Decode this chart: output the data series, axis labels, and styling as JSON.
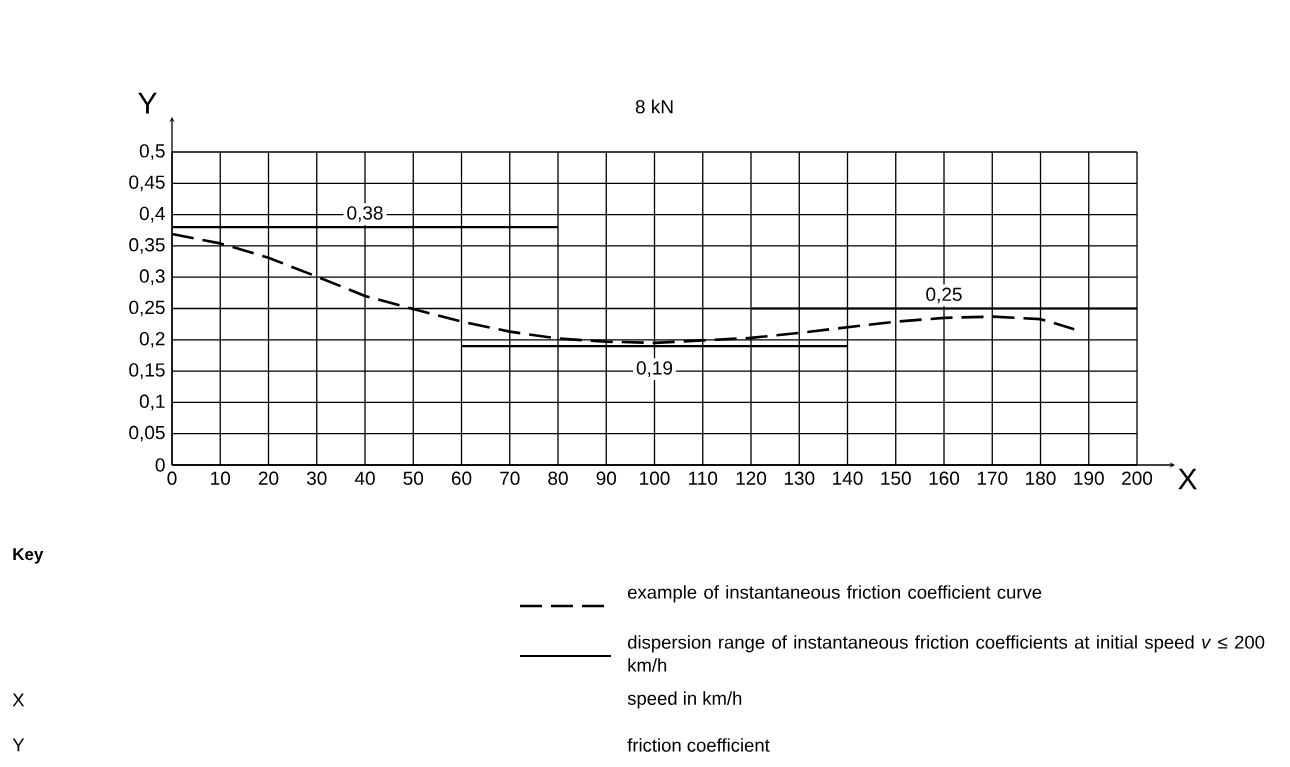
{
  "chart_data": {
    "type": "line",
    "title": "8 kN",
    "xlabel": "X",
    "ylabel": "Y",
    "legend_title": "Key",
    "legend": "bottom",
    "grid": true,
    "xlim": [
      0,
      200
    ],
    "ylim": [
      0,
      0.5
    ],
    "xticks": [
      0,
      10,
      20,
      30,
      40,
      50,
      60,
      70,
      80,
      90,
      100,
      110,
      120,
      130,
      140,
      150,
      160,
      170,
      180,
      190,
      200
    ],
    "yticks": [
      {
        "value": 0,
        "label": "0"
      },
      {
        "value": 0.05,
        "label": "0,05"
      },
      {
        "value": 0.1,
        "label": "0,1"
      },
      {
        "value": 0.15,
        "label": "0,15"
      },
      {
        "value": 0.2,
        "label": "0,2"
      },
      {
        "value": 0.25,
        "label": "0,25"
      },
      {
        "value": 0.3,
        "label": "0,3"
      },
      {
        "value": 0.35,
        "label": "0,35"
      },
      {
        "value": 0.4,
        "label": "0,4"
      },
      {
        "value": 0.45,
        "label": "0,45"
      },
      {
        "value": 0.5,
        "label": "0,5"
      }
    ],
    "series": [
      {
        "name": "example of instantaneous friction coefficient curve",
        "color": "#000000",
        "line_style": "dashed",
        "x": [
          0,
          10,
          20,
          30,
          40,
          50,
          60,
          70,
          80,
          90,
          100,
          110,
          120,
          130,
          140,
          150,
          160,
          170,
          180,
          187
        ],
        "values": [
          0.369,
          0.354,
          0.331,
          0.301,
          0.27,
          0.249,
          0.229,
          0.213,
          0.202,
          0.197,
          0.195,
          0.199,
          0.203,
          0.211,
          0.22,
          0.229,
          0.235,
          0.237,
          0.233,
          0.217
        ]
      },
      {
        "name": "dispersion range of instantaneous friction coefficients at initial speed *v* ≤ 200 km/h",
        "color": "#000000",
        "line_style": "solid",
        "x": [
          0,
          80
        ],
        "values": [
          0.38,
          0.38
        ]
      },
      {
        "color": "#000000",
        "line_style": "solid",
        "x": [
          60,
          140
        ],
        "values": [
          0.19,
          0.19
        ]
      },
      {
        "color": "#000000",
        "line_style": "solid",
        "x": [
          120,
          200
        ],
        "values": [
          0.25,
          0.25
        ]
      }
    ],
    "annotations": [
      {
        "text": "0,38",
        "x": 40,
        "y": 0.38
      },
      {
        "text": "0,19",
        "x": 100,
        "y": 0.19
      },
      {
        "text": "0,25",
        "x": 160,
        "y": 0.25
      },
      "X",
      "speed in km/h",
      "Y",
      "friction coefficient"
    ]
  }
}
